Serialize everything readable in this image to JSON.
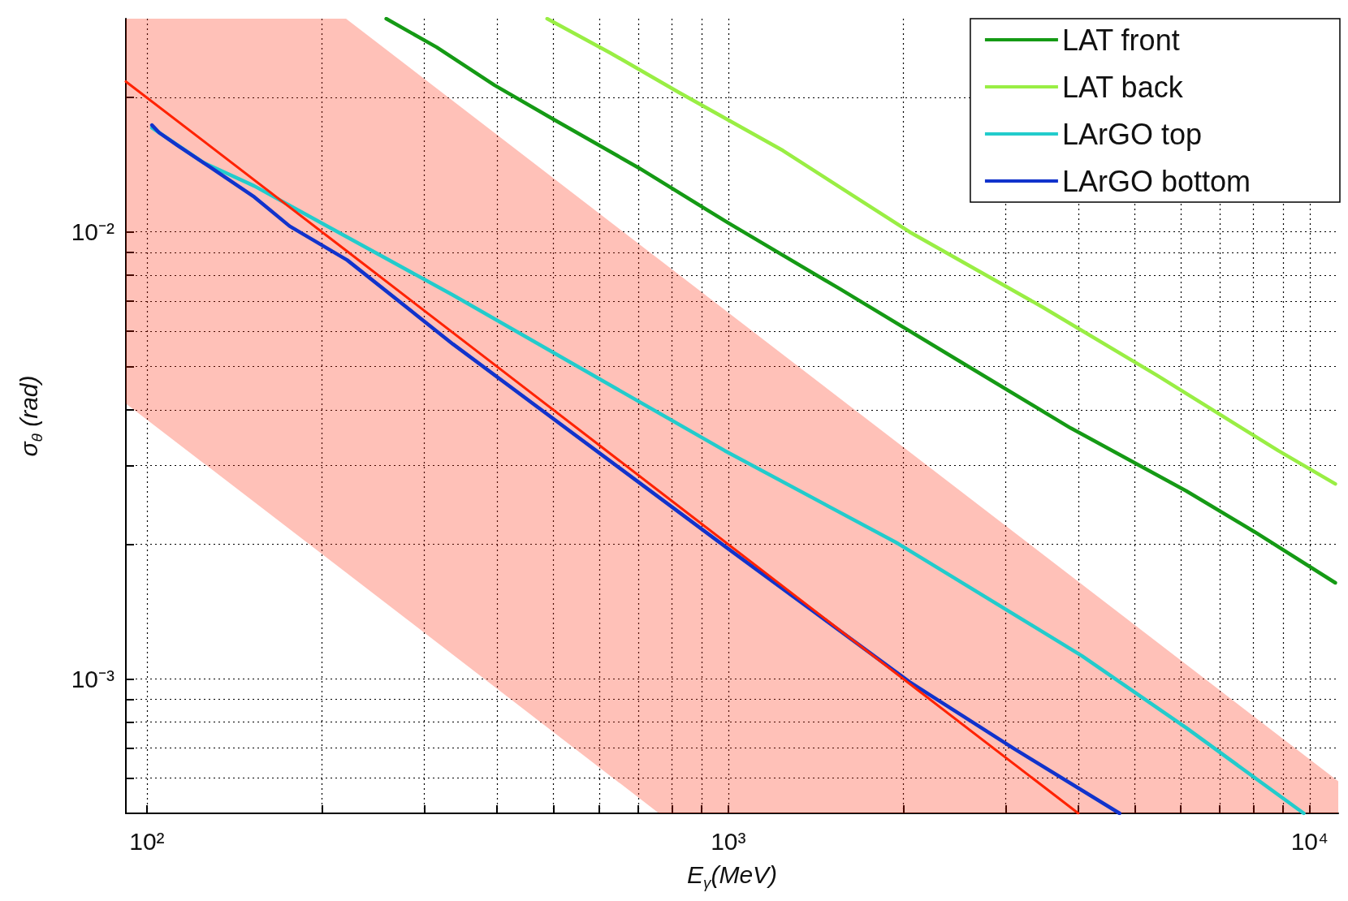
{
  "chart_data": {
    "type": "line",
    "xlabel": "E$_{γ}$(MeV)",
    "ylabel": "σ$_{θ}$ (rad)",
    "log": "xy",
    "grid": true,
    "legend": "top right",
    "marker": "none",
    "xlim": [
      92,
      11200
    ],
    "ylim": [
      0.0005,
      0.03
    ],
    "xticks": [
      {
        "value": 100,
        "label": "10²"
      },
      {
        "value": 200,
        "label": null
      },
      {
        "value": 300,
        "label": null
      },
      {
        "value": 400,
        "label": null
      },
      {
        "value": 500,
        "label": null
      },
      {
        "value": 600,
        "label": null
      },
      {
        "value": 700,
        "label": null
      },
      {
        "value": 800,
        "label": null
      },
      {
        "value": 900,
        "label": null
      },
      {
        "value": 1000,
        "label": "10³"
      },
      {
        "value": 2000,
        "label": null
      },
      {
        "value": 3000,
        "label": null
      },
      {
        "value": 4000,
        "label": null
      },
      {
        "value": 5000,
        "label": null
      },
      {
        "value": 6000,
        "label": null
      },
      {
        "value": 7000,
        "label": null
      },
      {
        "value": 8000,
        "label": null
      },
      {
        "value": 9000,
        "label": null
      },
      {
        "value": 10000,
        "label": "10⁴"
      }
    ],
    "yticks": [
      {
        "value": 0.0006,
        "label": null
      },
      {
        "value": 0.0007,
        "label": null
      },
      {
        "value": 0.0008,
        "label": null
      },
      {
        "value": 0.0009,
        "label": null
      },
      {
        "value": 0.001,
        "label": "10⁻³"
      },
      {
        "value": 0.002,
        "label": null
      },
      {
        "value": 0.003,
        "label": null
      },
      {
        "value": 0.004,
        "label": null
      },
      {
        "value": 0.005,
        "label": null
      },
      {
        "value": 0.006,
        "label": null
      },
      {
        "value": 0.007,
        "label": null
      },
      {
        "value": 0.008,
        "label": null
      },
      {
        "value": 0.009,
        "label": null
      },
      {
        "value": 0.01,
        "label": "10⁻²"
      },
      {
        "value": 0.02,
        "label": null
      }
    ],
    "series": [
      {
        "name": "LAT front",
        "color": "#159a15",
        "x": [
          258,
          315,
          396,
          499,
          702,
          1000,
          1560,
          2460,
          3880,
          6140,
          8050,
          11070
        ],
        "values": [
          0.03,
          0.0259,
          0.0213,
          0.0179,
          0.0139,
          0.01047,
          0.00744,
          0.0052,
          0.00364,
          0.00263,
          0.00213,
          0.00164
        ]
      },
      {
        "name": "LAT back",
        "color": "#99ee44",
        "x": [
          488,
          625,
          823,
          1242,
          2050,
          3470,
          5470,
          8830,
          11070
        ],
        "values": [
          0.03,
          0.0252,
          0.0205,
          0.0152,
          0.01,
          0.00679,
          0.00477,
          0.00324,
          0.00273
        ]
      },
      {
        "name": "LArGO top",
        "color": "#22cccc",
        "x": [
          102,
          125,
          153,
          202,
          336,
          986,
          1955,
          4060,
          6140,
          9770
        ],
        "values": [
          0.0171,
          0.0143,
          0.01267,
          0.01038,
          0.00722,
          0.00324,
          0.00201,
          0.001125,
          0.000776,
          0.0005
        ]
      },
      {
        "name": "LArGO bottom",
        "color": "#1133cc",
        "x": [
          102,
          105,
          113,
          128,
          153,
          176,
          221,
          336,
          986,
          2050,
          3090,
          4710
        ],
        "values": [
          0.01734,
          0.01667,
          0.0156,
          0.014,
          0.01197,
          0.0103,
          0.00865,
          0.00561,
          0.00198,
          0.000984,
          0.0007,
          0.0005
        ]
      },
      {
        "color": "#ff2200",
        "x": [
          92,
          220,
          760,
          4000,
          11200
        ],
        "values": [
          0.0217,
          0.00909,
          0.00263,
          0.0005,
          null
        ],
        "lower": [
          0.00413,
          0.00173,
          0.0005,
          0.0005,
          0.0005
        ],
        "upper": [
          0.03,
          0.03,
          0.00868,
          0.00165,
          0.00059
        ]
      }
    ]
  }
}
